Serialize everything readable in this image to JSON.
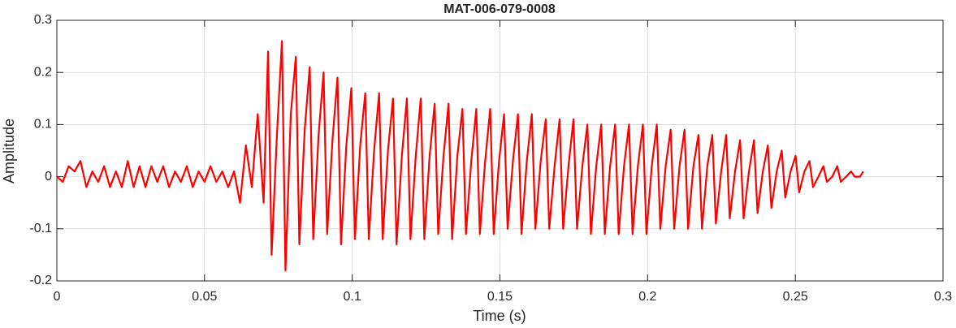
{
  "chart_data": {
    "type": "line",
    "title": "MAT-006-079-0008",
    "xlabel": "Time (s)",
    "ylabel": "Amplitude",
    "color": "#ff0000",
    "grid": true,
    "xlim": [
      0,
      0.3
    ],
    "xticks": [
      0,
      0.05,
      0.1,
      0.15,
      0.2,
      0.25,
      0.3
    ],
    "ylim": [
      -0.2,
      0.3
    ],
    "yticks": [
      -0.2,
      -0.1,
      0,
      0.1,
      0.2,
      0.3
    ],
    "x": [
      0,
      0.002,
      0.004,
      0.006,
      0.008,
      0.01,
      0.012,
      0.014,
      0.016,
      0.018,
      0.02,
      0.022,
      0.024,
      0.026,
      0.028,
      0.03,
      0.032,
      0.034,
      0.036,
      0.038,
      0.04,
      0.042,
      0.044,
      0.046,
      0.048,
      0.05,
      0.052,
      0.054,
      0.056,
      0.058,
      0.06,
      0.062,
      0.064,
      0.066,
      0.068,
      0.07,
      0.0715,
      0.0727,
      0.0745,
      0.0762,
      0.0774,
      0.0792,
      0.0809,
      0.0821,
      0.0839,
      0.0856,
      0.0868,
      0.0886,
      0.0903,
      0.0915,
      0.0933,
      0.095,
      0.0962,
      0.098,
      0.0997,
      0.1009,
      0.1027,
      0.1044,
      0.1056,
      0.1074,
      0.1091,
      0.1103,
      0.1121,
      0.1138,
      0.115,
      0.1168,
      0.1185,
      0.1197,
      0.1215,
      0.1232,
      0.1244,
      0.1262,
      0.1279,
      0.1291,
      0.1309,
      0.1326,
      0.1338,
      0.1356,
      0.1373,
      0.1385,
      0.1403,
      0.142,
      0.1432,
      0.145,
      0.1467,
      0.1479,
      0.1497,
      0.1514,
      0.1526,
      0.1544,
      0.1561,
      0.1573,
      0.1591,
      0.1608,
      0.162,
      0.1638,
      0.1655,
      0.1667,
      0.1685,
      0.1702,
      0.1714,
      0.1732,
      0.1749,
      0.1761,
      0.1779,
      0.1796,
      0.1808,
      0.1826,
      0.1843,
      0.1855,
      0.1873,
      0.189,
      0.1902,
      0.192,
      0.1937,
      0.1949,
      0.1967,
      0.1984,
      0.1996,
      0.2014,
      0.2031,
      0.2043,
      0.2061,
      0.2078,
      0.209,
      0.2108,
      0.2125,
      0.2137,
      0.2155,
      0.2172,
      0.2184,
      0.2202,
      0.2219,
      0.2231,
      0.2249,
      0.2266,
      0.2278,
      0.2296,
      0.2313,
      0.2325,
      0.2343,
      0.236,
      0.2372,
      0.239,
      0.2407,
      0.2419,
      0.2437,
      0.2454,
      0.2466,
      0.2484,
      0.2501,
      0.2513,
      0.2531,
      0.2548,
      0.256,
      0.2578,
      0.2595,
      0.2607,
      0.2625,
      0.2642,
      0.2654,
      0.2672,
      0.2689,
      0.2701,
      0.2719,
      0.273
    ],
    "values": [
      0,
      -0.01,
      0.02,
      0.01,
      0.03,
      -0.02,
      0.01,
      -0.01,
      0.02,
      -0.02,
      0.01,
      -0.02,
      0.03,
      -0.02,
      0.02,
      -0.02,
      0.02,
      -0.01,
      0.02,
      -0.02,
      0.01,
      -0.01,
      0.02,
      -0.02,
      0.01,
      -0.01,
      0.02,
      -0.01,
      0.01,
      -0.02,
      0.01,
      -0.05,
      0.06,
      -0.02,
      0.12,
      -0.05,
      0.24,
      -0.15,
      0.08,
      0.26,
      -0.18,
      0.12,
      0.23,
      -0.13,
      0.09,
      0.21,
      -0.12,
      0.08,
      0.2,
      -0.11,
      0.07,
      0.19,
      -0.13,
      0.06,
      0.17,
      -0.12,
      0.06,
      0.16,
      -0.12,
      0.05,
      0.16,
      -0.12,
      0.05,
      0.15,
      -0.13,
      0.04,
      0.15,
      -0.12,
      0.04,
      0.15,
      -0.12,
      0.04,
      0.14,
      -0.11,
      0.04,
      0.14,
      -0.12,
      0.04,
      0.13,
      -0.11,
      0.03,
      0.13,
      -0.11,
      0.03,
      0.13,
      -0.11,
      0.03,
      0.12,
      -0.1,
      0.03,
      0.12,
      -0.11,
      0.03,
      0.12,
      -0.1,
      0.03,
      0.11,
      -0.1,
      0.02,
      0.11,
      -0.1,
      0.02,
      0.11,
      -0.1,
      0.02,
      0.1,
      -0.11,
      0.02,
      0.1,
      -0.11,
      0.02,
      0.1,
      -0.11,
      0.02,
      0.1,
      -0.11,
      0.02,
      0.1,
      -0.11,
      0.02,
      0.1,
      -0.1,
      0.02,
      0.09,
      -0.1,
      0.02,
      0.09,
      -0.1,
      0.02,
      0.08,
      -0.1,
      0.02,
      0.08,
      -0.09,
      0.01,
      0.08,
      -0.08,
      0.01,
      0.07,
      -0.08,
      0.01,
      0.07,
      -0.07,
      0.01,
      0.06,
      -0.06,
      0.01,
      0.05,
      -0.04,
      0.01,
      0.04,
      -0.03,
      0.01,
      0.03,
      -0.02,
      0,
      0.02,
      -0.01,
      0,
      0.02,
      -0.01,
      0,
      0.01,
      0,
      0,
      0.01
    ]
  }
}
